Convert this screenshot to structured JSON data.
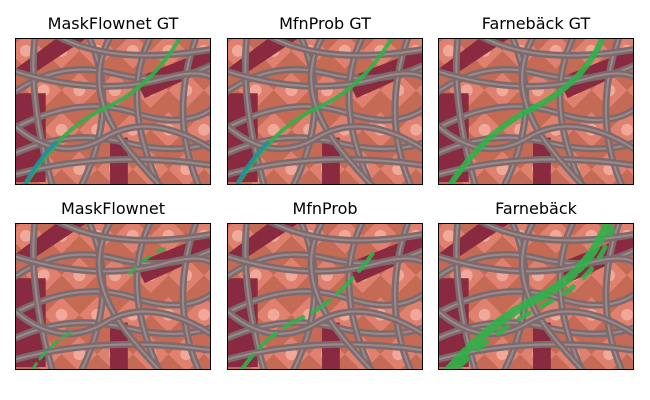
{
  "figure": {
    "panels": [
      {
        "title": "MaskFlownet GT",
        "overlay": "gt",
        "image": "rendered-tubes-scene"
      },
      {
        "title": "MfnProb GT",
        "overlay": "gt",
        "image": "rendered-tubes-scene"
      },
      {
        "title": "Farnebäck GT",
        "overlay": "gt-green",
        "image": "rendered-tubes-scene"
      },
      {
        "title": "MaskFlownet",
        "overlay": "pred-sparse",
        "image": "rendered-tubes-scene"
      },
      {
        "title": "MfnProb",
        "overlay": "pred-medium",
        "image": "rendered-tubes-scene"
      },
      {
        "title": "Farnebäck",
        "overlay": "pred-wide",
        "image": "rendered-tubes-scene"
      }
    ],
    "colors": {
      "background_salmon": "#c46a55",
      "tile_light": "#e98a7a",
      "tile_glow": "#f4b3a4",
      "crimson_bar": "#8a2a40",
      "tube_gray": "#7d6a6c",
      "tube_highlight": "#a8989a",
      "mask_green": "#2fb34a",
      "mask_teal": "#1f8fa0"
    }
  }
}
